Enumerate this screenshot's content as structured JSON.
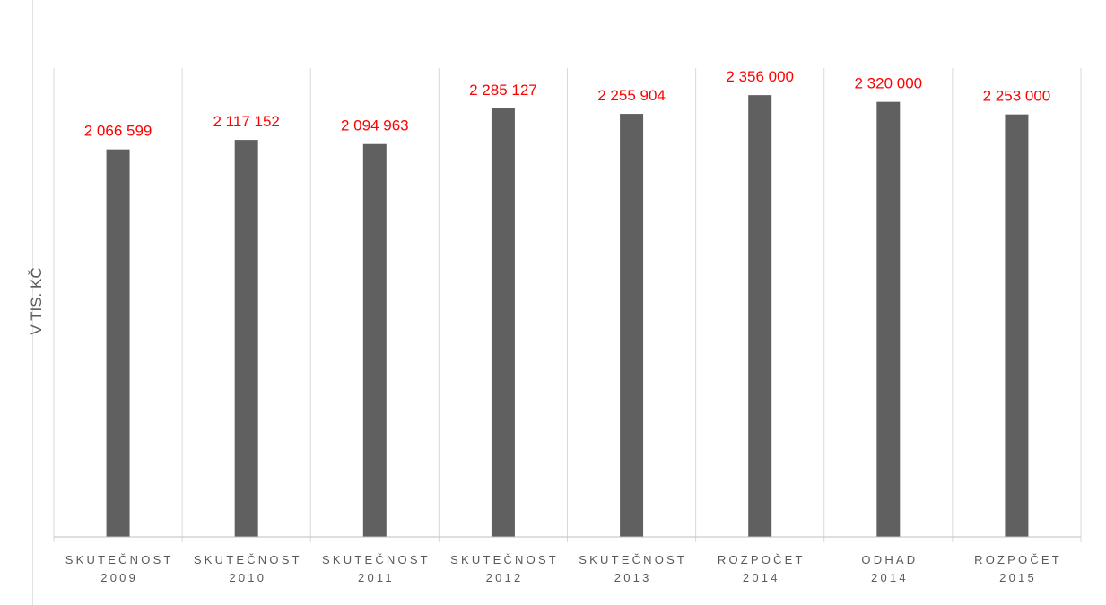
{
  "chart_data": {
    "type": "bar",
    "categories": [
      [
        "SKUTEČNOST",
        "2009"
      ],
      [
        "SKUTEČNOST",
        "2010"
      ],
      [
        "SKUTEČNOST",
        "2011"
      ],
      [
        "SKUTEČNOST",
        "2012"
      ],
      [
        "SKUTEČNOST",
        "2013"
      ],
      [
        "ROZPOČET",
        "2014"
      ],
      [
        "ODHAD",
        "2014"
      ],
      [
        "ROZPOČET",
        "2015"
      ]
    ],
    "values": [
      2066599,
      2117152,
      2094963,
      2285127,
      2255904,
      2356000,
      2320000,
      2253000
    ],
    "data_labels": [
      "2 066 599",
      "2 117 152",
      "2 094 963",
      "2 285 127",
      "2 255 904",
      "2 356 000",
      "2 320 000",
      "2 253 000"
    ],
    "title": "",
    "xlabel": "",
    "ylabel": "V TIS. KČ",
    "ylim": [
      0,
      2500000
    ],
    "grid": "vertical category separators",
    "legend": "none",
    "colors": {
      "bar": "#606060",
      "data_label": "#ff0000",
      "axis_text": "#595959",
      "gridline": "#d9d9d9"
    }
  }
}
